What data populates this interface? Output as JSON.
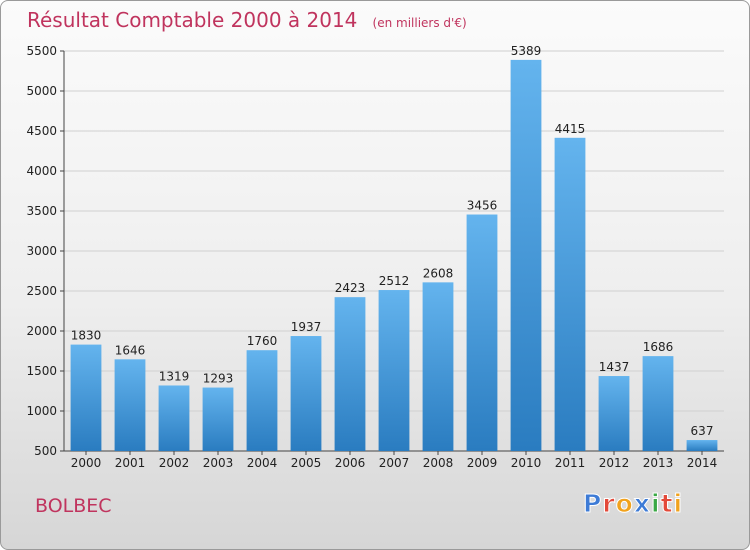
{
  "header": {
    "title": "Résultat Comptable 2000 à 2014",
    "subtitle": "(en milliers d'€)"
  },
  "footer": {
    "city": "BOLBEC",
    "logo_text": "Proxiti",
    "logo_colors": [
      "#3d7bd6",
      "#e34a3a",
      "#f1a21d",
      "#3d7bd6",
      "#3aa845",
      "#e34a3a",
      "#f1a21d"
    ]
  },
  "chart_data": {
    "type": "bar",
    "title": "Résultat Comptable 2000 à 2014",
    "subtitle": "(en milliers d'€)",
    "categories": [
      "2000",
      "2001",
      "2002",
      "2003",
      "2004",
      "2005",
      "2006",
      "2007",
      "2008",
      "2009",
      "2010",
      "2011",
      "2012",
      "2013",
      "2014"
    ],
    "values": [
      1830,
      1646,
      1319,
      1293,
      1760,
      1937,
      2423,
      2512,
      2608,
      3456,
      5389,
      4415,
      1437,
      1686,
      637
    ],
    "ylim": [
      500,
      5500
    ],
    "yticks": [
      500,
      1000,
      1500,
      2000,
      2500,
      3000,
      3500,
      4000,
      4500,
      5000,
      5500
    ],
    "grid": true,
    "bar_color_top": "#64b4ee",
    "bar_color_bottom": "#2a7cc0"
  }
}
